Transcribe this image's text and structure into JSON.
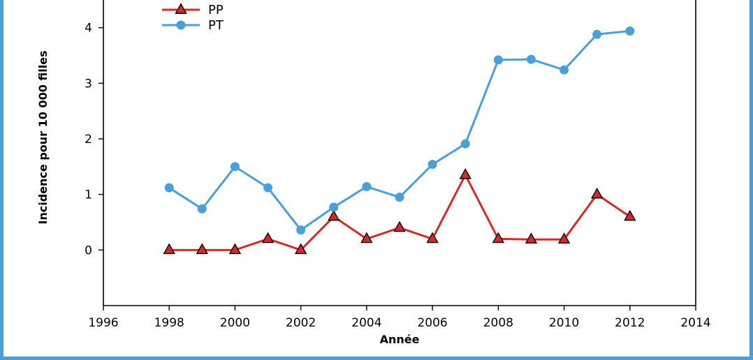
{
  "chart_data": {
    "type": "line",
    "title": "",
    "xlabel": "Année",
    "ylabel": "Incidence pour 10 000 filles",
    "xlim": [
      1996,
      2014
    ],
    "ylim": [
      -1,
      5
    ],
    "xticks": [
      1996,
      1998,
      2000,
      2002,
      2004,
      2006,
      2008,
      2010,
      2012,
      2014
    ],
    "yticks": [
      0,
      1,
      2,
      3,
      4
    ],
    "legend": "top-left",
    "grid": false,
    "series": [
      {
        "name": "PP",
        "marker": "triangle",
        "color": "#d42a2a",
        "x": [
          1998,
          1999,
          2000,
          2001,
          2002,
          2003,
          2004,
          2005,
          2006,
          2007,
          2008,
          2009,
          2010,
          2011,
          2012
        ],
        "values": [
          0,
          0,
          0,
          0.2,
          0,
          0.6,
          0.2,
          0.4,
          0.2,
          1.35,
          0.2,
          0.19,
          0.19,
          1.0,
          0.6
        ]
      },
      {
        "name": "PT",
        "marker": "circle",
        "color": "#4a9fd8",
        "x": [
          1998,
          1999,
          2000,
          2001,
          2002,
          2003,
          2004,
          2005,
          2006,
          2007,
          2008,
          2009,
          2010,
          2011,
          2012
        ],
        "values": [
          1.12,
          0.74,
          1.5,
          1.12,
          0.36,
          0.77,
          1.14,
          0.95,
          1.54,
          1.91,
          3.42,
          3.43,
          3.24,
          3.88,
          3.94
        ]
      }
    ]
  }
}
